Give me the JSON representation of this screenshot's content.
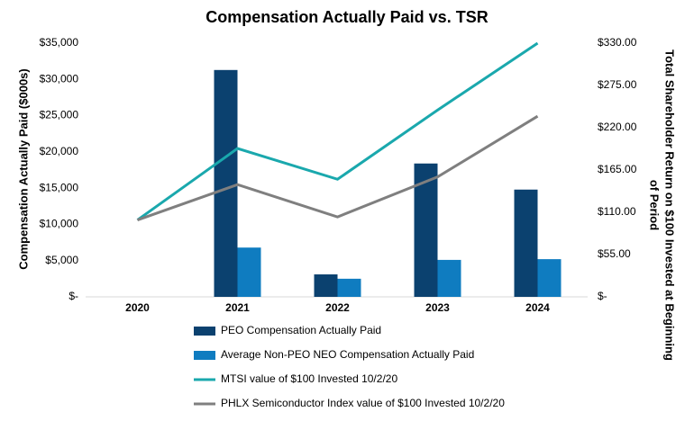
{
  "chart_data": {
    "type": "bar_line",
    "title": "Compensation Actually Paid vs. TSR",
    "ylabel": "Compensation Actually Paid ($000s)",
    "y2label": [
      "Total Shareholder Return on $100 Invested at Beginning",
      "of Period"
    ],
    "categories": [
      "2020",
      "2021",
      "2022",
      "2023",
      "2024"
    ],
    "ylim": [
      0,
      35000
    ],
    "yticks": [
      {
        "value": 0,
        "label": "$-"
      },
      {
        "value": 5000,
        "label": "$5,000"
      },
      {
        "value": 10000,
        "label": "$10,000"
      },
      {
        "value": 15000,
        "label": "$15,000"
      },
      {
        "value": 20000,
        "label": "$20,000"
      },
      {
        "value": 25000,
        "label": "$25,000"
      },
      {
        "value": 30000,
        "label": "$30,000"
      },
      {
        "value": 35000,
        "label": "$35,000"
      }
    ],
    "y2lim": [
      0,
      330
    ],
    "y2ticks": [
      {
        "value": 0,
        "label": "$-"
      },
      {
        "value": 55,
        "label": "$55.00"
      },
      {
        "value": 110,
        "label": "$110.00"
      },
      {
        "value": 165,
        "label": "$165.00"
      },
      {
        "value": 220,
        "label": "$220.00"
      },
      {
        "value": 275,
        "label": "$275.00"
      },
      {
        "value": 330,
        "label": "$330.00"
      }
    ],
    "grid": false,
    "series": [
      {
        "name": "PEO Compensation Actually Paid",
        "type": "bar",
        "color": "#0b416f",
        "values": [
          null,
          31300,
          3100,
          18400,
          14800
        ]
      },
      {
        "name": "Average Non-PEO NEO Compensation Actually Paid",
        "type": "bar",
        "color": "#0f7cc0",
        "values": [
          null,
          6800,
          2500,
          5100,
          5200
        ]
      },
      {
        "name": "MTSI value of $100 Invested 10/2/20",
        "type": "line",
        "axis": "y2",
        "color": "#1aa8ad",
        "values": [
          100,
          193,
          153,
          243,
          330
        ]
      },
      {
        "name": "PHLX Semiconductor Index value of $100 Invested 10/2/20",
        "type": "line",
        "axis": "y2",
        "color": "#7f7f7f",
        "values": [
          100,
          146,
          104,
          156,
          235
        ]
      }
    ]
  }
}
